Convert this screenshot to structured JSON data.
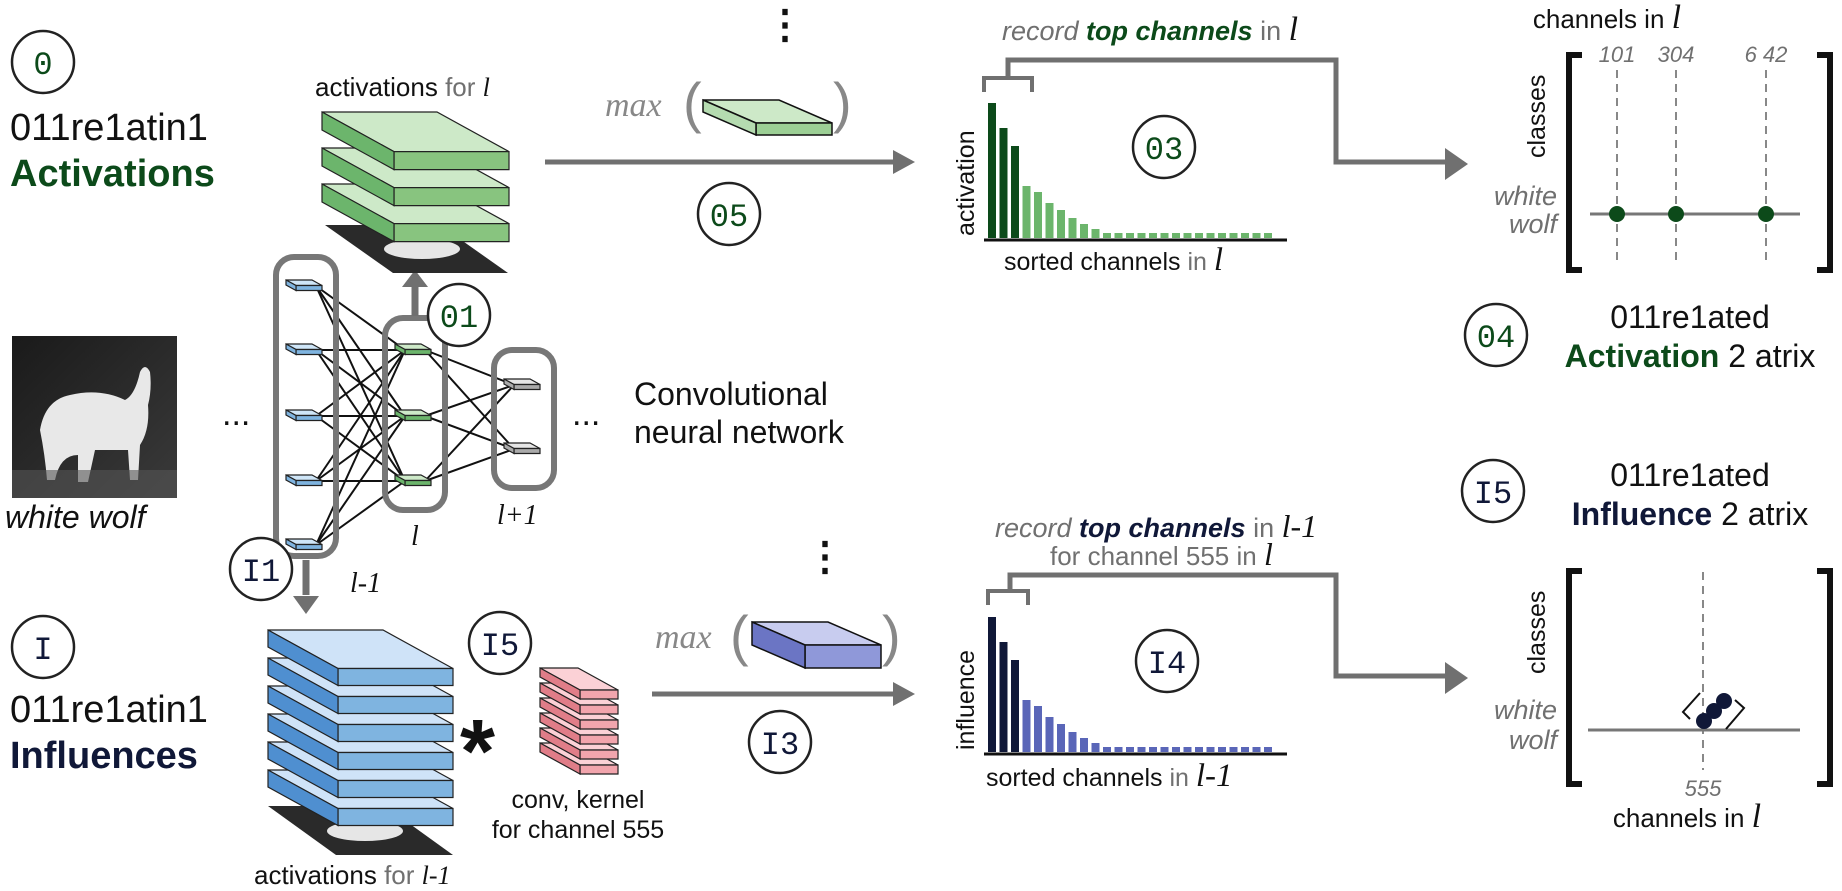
{
  "colors": {
    "green_dark": "#0c4a1a",
    "green_mid": "#6cb56c",
    "green_light": "#cde9c8",
    "navy": "#101838",
    "blue_mid": "#5a66b8",
    "blue_light": "#cfd8f5",
    "gray": "#707070",
    "pink": "#f2a5ad"
  },
  "section_a": {
    "badge": "0",
    "line1": "011re1atin1",
    "line2": "Activations"
  },
  "section_i": {
    "badge": "I",
    "line1": "011re1atin1",
    "line2": "Influences"
  },
  "input_label": "white wolf",
  "cnn": {
    "layer_prev": "l-1",
    "layer_cur": "l",
    "layer_next": "l+1",
    "ellipsis_left": "...",
    "ellipsis_right": "...",
    "caption_line1": "Convolutional",
    "caption_line2": "neural network"
  },
  "activations_top": {
    "prefix": "activations",
    "for": "for",
    "var": "l"
  },
  "activations_bottom": {
    "prefix": "activations",
    "for": "for",
    "var": "l-1"
  },
  "kernel_caption": {
    "line1": "conv, kernel",
    "line2": "for channel 555"
  },
  "steps": {
    "a1": "01",
    "a2": "05",
    "a3": "03",
    "a4": "04",
    "i1": "I1",
    "i2": "I5",
    "i3": "I3",
    "i4": "I4",
    "i5": "I5"
  },
  "max_label": "max",
  "vertical_dots": "⋮",
  "convolution_symbol": "*",
  "top_record": {
    "pre": "record",
    "bold": "top channels",
    "in": "in",
    "var": "l"
  },
  "bottom_record": {
    "pre": "record",
    "bold": "top channels",
    "in": "in",
    "var": "l-1",
    "line2_pre": "for channel 555",
    "line2_in": "in",
    "line2_var": "l"
  },
  "activation_chart": {
    "ylabel": "activation",
    "xlabel_pre": "sorted channels",
    "xlabel_in": "in",
    "xlabel_var": "l"
  },
  "influence_chart": {
    "ylabel": "influence",
    "xlabel_pre": "sorted channels",
    "xlabel_in": "in",
    "xlabel_var": "l-1"
  },
  "activation_matrix": {
    "title_pre": "channels in",
    "title_var": "l",
    "ticks": [
      "101",
      "304",
      "6 42"
    ],
    "ylabel": "classes",
    "row_line1": "white",
    "row_line2": "wolf",
    "caption_line1": "011re1ated",
    "caption_bold": "Activation",
    "caption_rest": "2 atrix"
  },
  "influence_matrix": {
    "ylabel": "classes",
    "row_line1": "white",
    "row_line2": "wolf",
    "tick": "555",
    "xlabel_pre": "channels in",
    "xlabel_var": "l",
    "caption_line1": "011re1ated",
    "caption_bold": "Influence",
    "caption_rest": "2 atrix"
  }
}
